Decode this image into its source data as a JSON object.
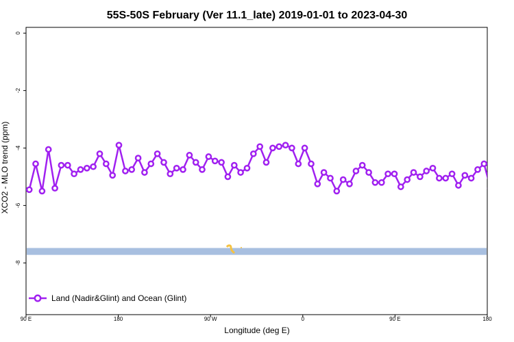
{
  "chart_data": {
    "type": "line",
    "title": "55S-50S February (Ver 11.1_late)   2019-01-01 to 2023-04-30",
    "xlabel": "Longitude (deg E)",
    "ylabel": "XCO2 - MLO trend (ppm)",
    "xlim": [
      90,
      450
    ],
    "ylim": [
      -9.8,
      0.2
    ],
    "x_ticks": [
      {
        "value": 90,
        "label": "90 E"
      },
      {
        "value": 162,
        "label": "180"
      },
      {
        "value": 234,
        "label": "90 W"
      },
      {
        "value": 306,
        "label": "0"
      },
      {
        "value": 378,
        "label": "90 E"
      },
      {
        "value": 450,
        "label": "180"
      }
    ],
    "y_ticks": [
      {
        "value": 0,
        "label": "0"
      },
      {
        "value": -2,
        "label": "-2"
      },
      {
        "value": -4,
        "label": "-4"
      },
      {
        "value": -6,
        "label": "-6"
      },
      {
        "value": -8,
        "label": "-8"
      }
    ],
    "grid": false,
    "legend_position": "bottom-left",
    "series": [
      {
        "name": "Land (Nadir&Glint) and Ocean (Glint)",
        "color": "#a020f0",
        "marker": "open-circle",
        "x": [
          92.5,
          97.5,
          102.5,
          107.5,
          112.5,
          117.5,
          122.5,
          127.5,
          132.5,
          137.5,
          142.5,
          147.5,
          152.5,
          157.5,
          162.5,
          167.5,
          172.5,
          177.5,
          182.5,
          187.5,
          192.5,
          197.5,
          202.5,
          207.5,
          212.5,
          217.5,
          222.5,
          227.5,
          232.5,
          237.5,
          242.5,
          247.5,
          252.5,
          257.5,
          262.5,
          267.5,
          272.5,
          277.5,
          282.5,
          287.5,
          292.5,
          297.5,
          302.5,
          307.5,
          312.5,
          317.5,
          322.5,
          327.5,
          332.5,
          337.5,
          342.5,
          347.5,
          352.5,
          357.5,
          362.5,
          367.5,
          372.5,
          377.5,
          382.5,
          387.5,
          392.5,
          397.5,
          402.5,
          407.5,
          412.5,
          417.5,
          422.5,
          427.5,
          432.5,
          437.5,
          442.5,
          447.5,
          452.5,
          457.5,
          462.5
        ],
        "values": [
          -5.45,
          -4.55,
          -5.5,
          -4.05,
          -5.4,
          -4.6,
          -4.6,
          -4.9,
          -4.75,
          -4.7,
          -4.65,
          -4.2,
          -4.55,
          -4.95,
          -3.9,
          -4.8,
          -4.75,
          -4.35,
          -4.85,
          -4.55,
          -4.2,
          -4.5,
          -4.9,
          -4.7,
          -4.75,
          -4.25,
          -4.5,
          -4.75,
          -4.3,
          -4.45,
          -4.5,
          -5.0,
          -4.6,
          -4.85,
          -4.7,
          -4.2,
          -3.95,
          -4.5,
          -4.0,
          -3.95,
          -3.9,
          -4.0,
          -4.55,
          -4.0,
          -4.55,
          -5.25,
          -4.85,
          -5.05,
          -5.5,
          -5.1,
          -5.25,
          -4.8,
          -4.6,
          -4.85,
          -5.2,
          -5.2,
          -4.9,
          -4.9,
          -5.35,
          -5.1,
          -4.85,
          -5.0,
          -4.8,
          -4.7,
          -5.05,
          -5.05,
          -4.9,
          -5.3,
          -4.95,
          -5.05,
          -4.75,
          -4.55,
          -5.4,
          -4.55,
          -5.5
        ]
      }
    ],
    "band": {
      "y_from": -7.72,
      "y_to": -7.48,
      "color": "#a8bfe0"
    }
  }
}
